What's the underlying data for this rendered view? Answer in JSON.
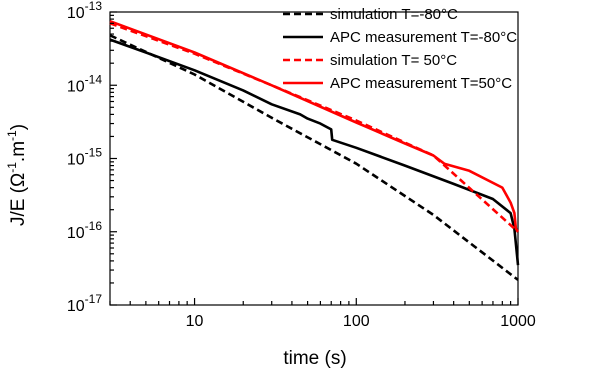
{
  "chart_data": {
    "type": "line",
    "xscale": "log",
    "yscale": "log",
    "xlim": [
      3,
      1000
    ],
    "ylim": [
      1e-17,
      1e-13
    ],
    "grid": false,
    "legend_position": "top-right",
    "xlabel": "time (s)",
    "ylabel": {
      "prefix": "J/E (",
      "omega": "Ω",
      "exp1": "-1",
      "mid": ".m",
      "exp2": "-1",
      "suffix": ")"
    },
    "xticks": [
      {
        "value": 10,
        "label": "10"
      },
      {
        "value": 100,
        "label": "100"
      },
      {
        "value": 1000,
        "label": "1000"
      }
    ],
    "yticks": [
      {
        "value": 1e-17,
        "base": "10",
        "exp": "-17"
      },
      {
        "value": 1e-16,
        "base": "10",
        "exp": "-16"
      },
      {
        "value": 1e-15,
        "base": "10",
        "exp": "-15"
      },
      {
        "value": 1e-14,
        "base": "10",
        "exp": "-14"
      },
      {
        "value": 1e-13,
        "base": "10",
        "exp": "-13"
      }
    ],
    "series": [
      {
        "name": "simulation T=-80°C",
        "color": "#000000",
        "dash": "dashed",
        "points": [
          [
            3,
            4.8e-14
          ],
          [
            10,
            1.4e-14
          ],
          [
            30,
            3.6e-15
          ],
          [
            100,
            8.5e-16
          ],
          [
            300,
            1.7e-16
          ],
          [
            1000,
            2.2e-17
          ]
        ]
      },
      {
        "name": "APC measurement T=-80°C",
        "color": "#000000",
        "dash": "solid",
        "points": [
          [
            3,
            4.2e-14
          ],
          [
            5,
            2.8e-14
          ],
          [
            10,
            1.6e-14
          ],
          [
            20,
            8.5e-15
          ],
          [
            30,
            5.5e-15
          ],
          [
            45,
            4e-15
          ],
          [
            50,
            3.5e-15
          ],
          [
            60,
            3e-15
          ],
          [
            70,
            2.5e-15
          ],
          [
            71,
            1.8e-15
          ],
          [
            100,
            1.4e-15
          ],
          [
            200,
            8e-16
          ],
          [
            400,
            4.5e-16
          ],
          [
            700,
            2.8e-16
          ],
          [
            900,
            1.8e-16
          ],
          [
            950,
            1.1e-16
          ],
          [
            1000,
            3.5e-17
          ]
        ]
      },
      {
        "name": "simulation T= 50°C",
        "color": "#ff0000",
        "dash": "dashed",
        "points": [
          [
            3,
            7e-14
          ],
          [
            10,
            2.7e-14
          ],
          [
            30,
            1e-14
          ],
          [
            100,
            3.3e-15
          ],
          [
            300,
            1.1e-15
          ],
          [
            1000,
            1e-16
          ]
        ]
      },
      {
        "name": "APC measurement T=50°C",
        "color": "#ff0000",
        "dash": "solid",
        "points": [
          [
            3,
            7.5e-14
          ],
          [
            10,
            2.8e-14
          ],
          [
            30,
            1e-14
          ],
          [
            100,
            3.1e-15
          ],
          [
            200,
            1.6e-15
          ],
          [
            300,
            1.1e-15
          ],
          [
            350,
            8.5e-16
          ],
          [
            500,
            6.8e-16
          ],
          [
            800,
            4e-16
          ],
          [
            900,
            2.5e-16
          ],
          [
            950,
            1.8e-16
          ],
          [
            970,
            1.1e-16
          ],
          [
            1000,
            1e-16
          ]
        ]
      }
    ]
  }
}
